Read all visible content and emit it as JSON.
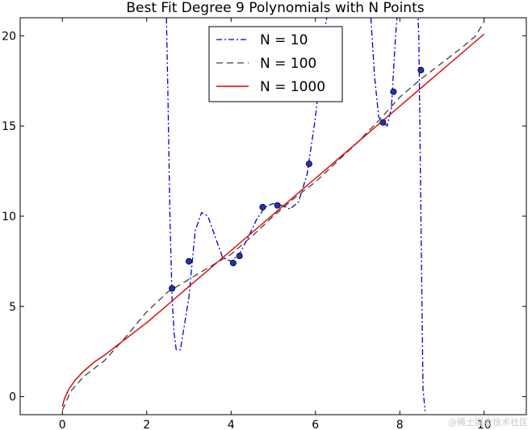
{
  "chart_data": {
    "type": "line",
    "title": "Best Fit Degree 9 Polynomials with N Points",
    "xlabel": "",
    "ylabel": "",
    "xlim": [
      -1,
      11
    ],
    "ylim": [
      -1,
      21
    ],
    "x_ticks": [
      0,
      2,
      4,
      6,
      8,
      10
    ],
    "y_ticks": [
      0,
      5,
      10,
      15,
      20
    ],
    "grid": false,
    "legend_position": "top-center",
    "series": [
      {
        "name": "N = 10",
        "style": "dashdot",
        "color": "#0000cc",
        "x": [
          2.45,
          2.5,
          2.55,
          2.6,
          2.65,
          2.7,
          2.8,
          3.0,
          3.15,
          3.3,
          3.45,
          3.6,
          3.8,
          4.0,
          4.2,
          4.4,
          4.6,
          4.8,
          5.0,
          5.2,
          5.4,
          5.6,
          5.8,
          6.0,
          6.2,
          6.4,
          6.8,
          7.2,
          7.3,
          7.4,
          7.5,
          7.6,
          7.7,
          7.8,
          7.9,
          8.0,
          8.1,
          8.2,
          8.3,
          8.4,
          8.45,
          8.5,
          8.55,
          8.6
        ],
        "y": [
          23,
          17,
          10,
          5.5,
          3.5,
          2.6,
          2.6,
          5.5,
          9.2,
          10.2,
          10.0,
          9.0,
          7.7,
          7.5,
          7.9,
          8.8,
          9.8,
          10.5,
          10.7,
          10.6,
          10.4,
          10.8,
          12.3,
          15.5,
          20,
          23,
          23,
          23,
          21.5,
          17.8,
          15.5,
          15.2,
          15.0,
          16.0,
          20,
          23,
          23,
          23,
          23,
          23,
          20,
          10,
          0.4,
          -0.8
        ]
      },
      {
        "name": "N = 100",
        "style": "dashed",
        "color": "#404040",
        "x": [
          0,
          0.2,
          0.5,
          1.0,
          1.5,
          2.0,
          2.5,
          3.0,
          3.5,
          4.0,
          4.5,
          5.0,
          5.5,
          6.0,
          6.5,
          7.0,
          7.5,
          8.0,
          8.5,
          9.0,
          9.5,
          9.8,
          10.0
        ],
        "y": [
          -0.75,
          0.3,
          1.1,
          2.0,
          3.3,
          4.7,
          5.8,
          6.5,
          7.2,
          7.9,
          8.9,
          10.0,
          11.0,
          11.9,
          13.0,
          14.1,
          15.3,
          16.6,
          17.6,
          18.5,
          19.4,
          20.0,
          20.8
        ]
      },
      {
        "name": "N = 1000",
        "style": "solid",
        "color": "#dd0000",
        "x": [
          0,
          0.05,
          0.15,
          0.3,
          0.5,
          0.75,
          1.0,
          1.5,
          2.0,
          2.5,
          3.0,
          3.5,
          4.0,
          4.5,
          5.0,
          5.5,
          6.0,
          6.5,
          7.0,
          7.5,
          8.0,
          8.5,
          9.0,
          9.5,
          10.0
        ],
        "y": [
          -0.55,
          -0.1,
          0.4,
          0.9,
          1.4,
          1.9,
          2.3,
          3.2,
          4.1,
          5.1,
          6.1,
          7.1,
          8.1,
          9.1,
          10.1,
          11.1,
          12.1,
          13.1,
          14.1,
          15.1,
          16.1,
          17.1,
          18.1,
          19.1,
          20.1
        ]
      }
    ],
    "points": {
      "color": "#1f2fbf",
      "x": [
        2.6,
        3.0,
        4.05,
        4.2,
        4.75,
        5.1,
        5.85,
        7.6,
        7.85,
        8.5
      ],
      "y": [
        6.0,
        7.5,
        7.4,
        7.8,
        10.5,
        10.6,
        12.9,
        15.2,
        16.9,
        18.1
      ]
    }
  },
  "watermark": "@稀土掘金技术社区"
}
